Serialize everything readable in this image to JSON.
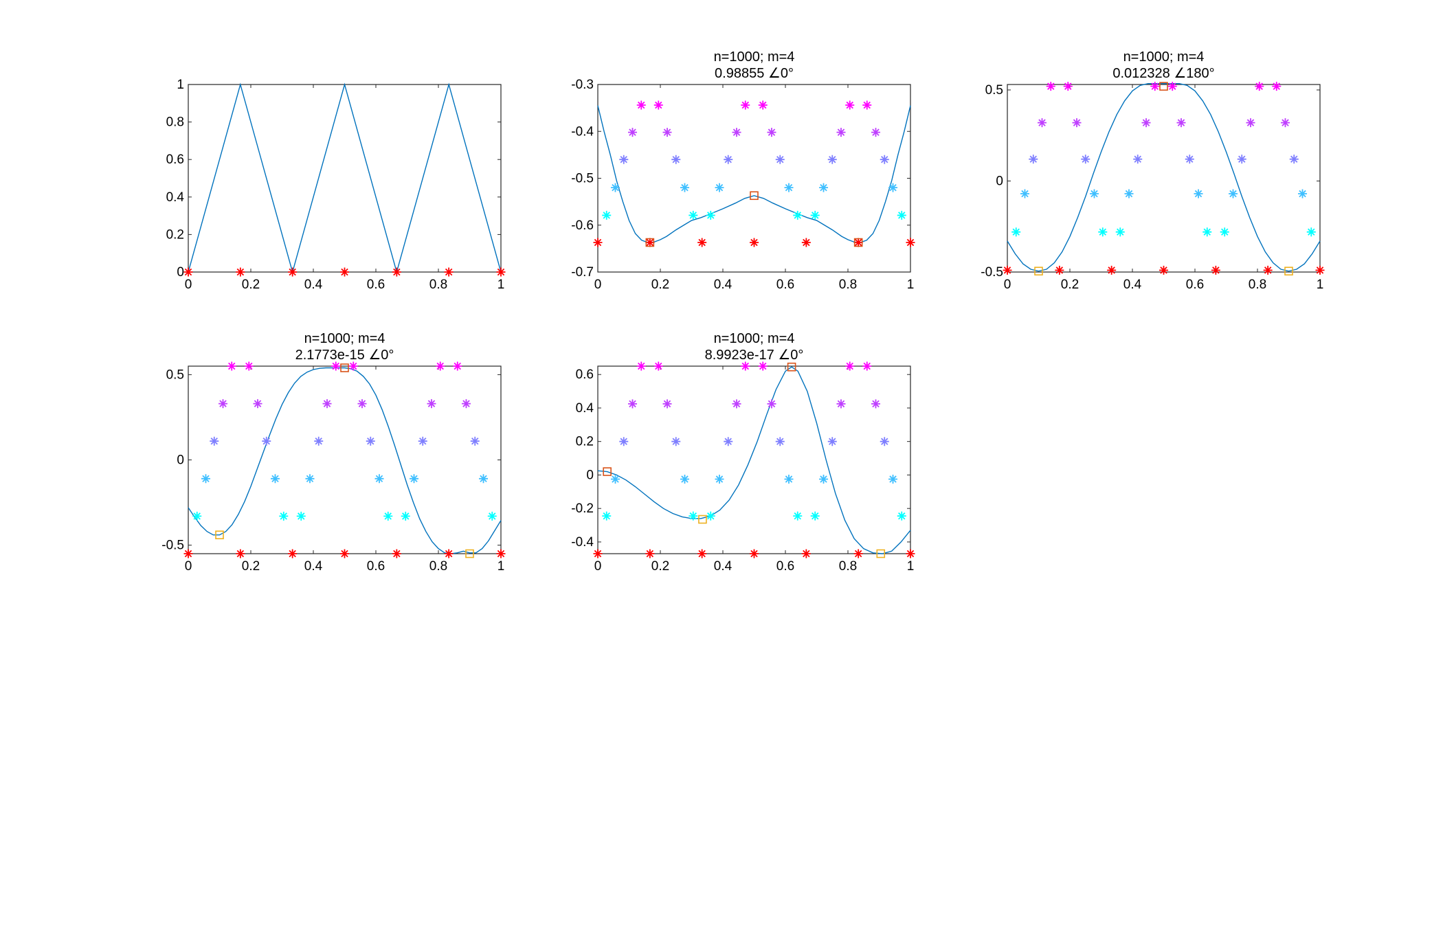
{
  "figure": {
    "background": "#ffffff",
    "curve_color": "#0072BD",
    "axes_color": "#262626"
  },
  "chart_data": [
    {
      "type": "line",
      "title": [],
      "xlim": [
        0,
        1
      ],
      "ylim": [
        0,
        1
      ],
      "xticks": [
        0,
        0.2,
        0.4,
        0.6,
        0.8,
        1
      ],
      "xtick_labels": [
        "0",
        "0.2",
        "0.4",
        "0.6",
        "0.8",
        "1"
      ],
      "yticks": [
        0,
        0.2,
        0.4,
        0.6,
        0.8,
        1
      ],
      "ytick_labels": [
        "0",
        "0.2",
        "0.4",
        "0.6",
        "0.8",
        "1"
      ],
      "curve": {
        "x": [
          0,
          0.1667,
          0.3333,
          0.5,
          0.6667,
          0.8333,
          1
        ],
        "y": [
          0,
          1,
          0,
          1,
          0,
          1,
          0
        ]
      },
      "star_rows": [
        {
          "color": "#FF0000",
          "y": 0,
          "x": [
            0,
            0.1667,
            0.3333,
            0.5,
            0.6667,
            0.8333,
            1
          ]
        }
      ],
      "squares": []
    },
    {
      "type": "line",
      "title": [
        "n=1000; m=4",
        "0.98855 ∠0°"
      ],
      "xlim": [
        0,
        1
      ],
      "ylim": [
        -0.7,
        -0.3
      ],
      "xticks": [
        0,
        0.2,
        0.4,
        0.6,
        0.8,
        1
      ],
      "xtick_labels": [
        "0",
        "0.2",
        "0.4",
        "0.6",
        "0.8",
        "1"
      ],
      "yticks": [
        -0.7,
        -0.6,
        -0.5,
        -0.4,
        -0.3
      ],
      "ytick_labels": [
        "-0.7",
        "-0.6",
        "-0.5",
        "-0.4",
        "-0.3"
      ],
      "curve": {
        "x": [
          0,
          0.02,
          0.04,
          0.06,
          0.08,
          0.1,
          0.12,
          0.14,
          0.16,
          0.1667,
          0.18,
          0.2,
          0.22,
          0.25,
          0.28,
          0.3,
          0.33,
          0.36,
          0.4,
          0.44,
          0.47,
          0.5,
          0.53,
          0.56,
          0.6,
          0.64,
          0.67,
          0.7,
          0.72,
          0.75,
          0.78,
          0.8,
          0.82,
          0.8333,
          0.84,
          0.86,
          0.88,
          0.9,
          0.92,
          0.94,
          0.96,
          0.98,
          1
        ],
        "y": [
          -0.345,
          -0.4,
          -0.45,
          -0.505,
          -0.55,
          -0.59,
          -0.618,
          -0.632,
          -0.637,
          -0.637,
          -0.636,
          -0.631,
          -0.624,
          -0.61,
          -0.598,
          -0.59,
          -0.584,
          -0.576,
          -0.565,
          -0.553,
          -0.543,
          -0.537,
          -0.543,
          -0.553,
          -0.565,
          -0.576,
          -0.584,
          -0.59,
          -0.598,
          -0.61,
          -0.624,
          -0.631,
          -0.636,
          -0.637,
          -0.637,
          -0.632,
          -0.618,
          -0.59,
          -0.55,
          -0.505,
          -0.45,
          -0.4,
          -0.345
        ]
      },
      "star_rows": [
        {
          "color": "#FF0000",
          "y": -0.637,
          "x": [
            0,
            0.1667,
            0.3333,
            0.5,
            0.6667,
            0.8333,
            1
          ]
        },
        {
          "color": "#00FFFF",
          "y": -0.579,
          "x": [
            0.028,
            0.305,
            0.361,
            0.639,
            0.695,
            0.972
          ]
        },
        {
          "color": "#3FBFFF",
          "y": -0.52,
          "x": [
            0.056,
            0.278,
            0.389,
            0.611,
            0.722,
            0.944
          ]
        },
        {
          "color": "#7F7FFF",
          "y": -0.46,
          "x": [
            0.083,
            0.25,
            0.417,
            0.583,
            0.75,
            0.917
          ]
        },
        {
          "color": "#BF3FFF",
          "y": -0.402,
          "x": [
            0.111,
            0.222,
            0.444,
            0.556,
            0.778,
            0.889
          ]
        },
        {
          "color": "#FF00FF",
          "y": -0.344,
          "x": [
            0.139,
            0.194,
            0.472,
            0.528,
            0.806,
            0.861
          ]
        }
      ],
      "squares": [
        {
          "color": "#D95319",
          "x": 0.5,
          "y": -0.537
        },
        {
          "color": "#D95319",
          "x": 0.1667,
          "y": -0.637
        },
        {
          "color": "#D95319",
          "x": 0.8333,
          "y": -0.637
        }
      ]
    },
    {
      "type": "line",
      "title": [
        "n=1000; m=4",
        "0.012328 ∠180°"
      ],
      "xlim": [
        0,
        1
      ],
      "ylim": [
        -0.5,
        0.53
      ],
      "xticks": [
        0,
        0.2,
        0.4,
        0.6,
        0.8,
        1
      ],
      "xtick_labels": [
        "0",
        "0.2",
        "0.4",
        "0.6",
        "0.8",
        "1"
      ],
      "yticks": [
        -0.5,
        0,
        0.5
      ],
      "ytick_labels": [
        "-0.5",
        "0",
        "0.5"
      ],
      "curve": {
        "x": [
          0,
          0.025,
          0.05,
          0.075,
          0.1,
          0.125,
          0.15,
          0.175,
          0.2,
          0.225,
          0.25,
          0.275,
          0.3,
          0.325,
          0.35,
          0.375,
          0.4,
          0.425,
          0.45,
          0.475,
          0.5,
          0.525,
          0.55,
          0.575,
          0.6,
          0.625,
          0.65,
          0.675,
          0.7,
          0.725,
          0.75,
          0.775,
          0.8,
          0.825,
          0.85,
          0.875,
          0.9,
          0.925,
          0.95,
          0.975,
          1
        ],
        "y": [
          -0.33,
          -0.4,
          -0.455,
          -0.485,
          -0.495,
          -0.485,
          -0.45,
          -0.39,
          -0.305,
          -0.2,
          -0.085,
          0.04,
          0.16,
          0.27,
          0.365,
          0.44,
          0.495,
          0.525,
          0.535,
          0.535,
          0.535,
          0.535,
          0.535,
          0.525,
          0.495,
          0.44,
          0.365,
          0.27,
          0.16,
          0.04,
          -0.085,
          -0.2,
          -0.305,
          -0.39,
          -0.45,
          -0.485,
          -0.495,
          -0.485,
          -0.455,
          -0.4,
          -0.33
        ]
      },
      "star_rows": [
        {
          "color": "#FF0000",
          "y": -0.49,
          "x": [
            0,
            0.1667,
            0.3333,
            0.5,
            0.6667,
            0.8333,
            1
          ]
        },
        {
          "color": "#00FFFF",
          "y": -0.28,
          "x": [
            0.028,
            0.305,
            0.361,
            0.639,
            0.695,
            0.972
          ]
        },
        {
          "color": "#3FBFFF",
          "y": -0.07,
          "x": [
            0.056,
            0.278,
            0.389,
            0.611,
            0.722,
            0.944
          ]
        },
        {
          "color": "#7F7FFF",
          "y": 0.12,
          "x": [
            0.083,
            0.25,
            0.417,
            0.583,
            0.75,
            0.917
          ]
        },
        {
          "color": "#BF3FFF",
          "y": 0.32,
          "x": [
            0.111,
            0.222,
            0.444,
            0.556,
            0.778,
            0.889
          ]
        },
        {
          "color": "#FF00FF",
          "y": 0.52,
          "x": [
            0.139,
            0.194,
            0.472,
            0.528,
            0.806,
            0.861
          ]
        }
      ],
      "squares": [
        {
          "color": "#D95319",
          "x": 0.5,
          "y": 0.52
        },
        {
          "color": "#EDB120",
          "x": 0.1,
          "y": -0.495
        },
        {
          "color": "#EDB120",
          "x": 0.9,
          "y": -0.495
        }
      ]
    },
    {
      "type": "line",
      "title": [
        "n=1000; m=4",
        "2.1773e-15 ∠0°"
      ],
      "xlim": [
        0,
        1
      ],
      "ylim": [
        -0.55,
        0.55
      ],
      "xticks": [
        0,
        0.2,
        0.4,
        0.6,
        0.8,
        1
      ],
      "xtick_labels": [
        "0",
        "0.2",
        "0.4",
        "0.6",
        "0.8",
        "1"
      ],
      "yticks": [
        -0.5,
        0,
        0.5
      ],
      "ytick_labels": [
        "-0.5",
        "0",
        "0.5"
      ],
      "curve": {
        "x": [
          0,
          0.02,
          0.04,
          0.06,
          0.08,
          0.1,
          0.12,
          0.14,
          0.16,
          0.18,
          0.2,
          0.22,
          0.24,
          0.26,
          0.28,
          0.3,
          0.32,
          0.34,
          0.36,
          0.38,
          0.4,
          0.42,
          0.44,
          0.46,
          0.48,
          0.5,
          0.52,
          0.54,
          0.56,
          0.58,
          0.6,
          0.62,
          0.64,
          0.66,
          0.68,
          0.7,
          0.72,
          0.74,
          0.76,
          0.78,
          0.8,
          0.82,
          0.84,
          0.86,
          0.88,
          0.9,
          0.92,
          0.94,
          0.96,
          0.98,
          1
        ],
        "y": [
          -0.28,
          -0.335,
          -0.385,
          -0.42,
          -0.44,
          -0.44,
          -0.42,
          -0.38,
          -0.32,
          -0.245,
          -0.155,
          -0.055,
          0.045,
          0.145,
          0.24,
          0.325,
          0.395,
          0.45,
          0.49,
          0.515,
          0.53,
          0.537,
          0.54,
          0.54,
          0.54,
          0.54,
          0.535,
          0.52,
          0.49,
          0.445,
          0.38,
          0.295,
          0.195,
          0.085,
          -0.03,
          -0.145,
          -0.25,
          -0.345,
          -0.42,
          -0.48,
          -0.52,
          -0.545,
          -0.55,
          -0.545,
          -0.535,
          -0.545,
          -0.545,
          -0.52,
          -0.475,
          -0.415,
          -0.355
        ]
      },
      "star_rows": [
        {
          "color": "#FF0000",
          "y": -0.55,
          "x": [
            0,
            0.1667,
            0.3333,
            0.5,
            0.6667,
            0.8333,
            1
          ]
        },
        {
          "color": "#00FFFF",
          "y": -0.33,
          "x": [
            0.028,
            0.305,
            0.361,
            0.639,
            0.695,
            0.972
          ]
        },
        {
          "color": "#3FBFFF",
          "y": -0.11,
          "x": [
            0.056,
            0.278,
            0.389,
            0.611,
            0.722,
            0.944
          ]
        },
        {
          "color": "#7F7FFF",
          "y": 0.11,
          "x": [
            0.083,
            0.25,
            0.417,
            0.583,
            0.75,
            0.917
          ]
        },
        {
          "color": "#BF3FFF",
          "y": 0.33,
          "x": [
            0.111,
            0.222,
            0.444,
            0.556,
            0.778,
            0.889
          ]
        },
        {
          "color": "#FF00FF",
          "y": 0.55,
          "x": [
            0.139,
            0.194,
            0.472,
            0.528,
            0.806,
            0.861
          ]
        }
      ],
      "squares": [
        {
          "color": "#D95319",
          "x": 0.5,
          "y": 0.54
        },
        {
          "color": "#EDB120",
          "x": 0.1,
          "y": -0.44
        },
        {
          "color": "#EDB120",
          "x": 0.9,
          "y": -0.55
        }
      ]
    },
    {
      "type": "line",
      "title": [
        "n=1000; m=4",
        "8.9923e-17 ∠0°"
      ],
      "xlim": [
        0,
        1
      ],
      "ylim": [
        -0.47,
        0.65
      ],
      "xticks": [
        0,
        0.2,
        0.4,
        0.6,
        0.8,
        1
      ],
      "xtick_labels": [
        "0",
        "0.2",
        "0.4",
        "0.6",
        "0.8",
        "1"
      ],
      "yticks": [
        -0.4,
        -0.2,
        0,
        0.2,
        0.4,
        0.6
      ],
      "ytick_labels": [
        "-0.4",
        "-0.2",
        "0",
        "0.2",
        "0.4",
        "0.6"
      ],
      "curve": {
        "x": [
          0,
          0.03,
          0.06,
          0.09,
          0.12,
          0.15,
          0.18,
          0.21,
          0.24,
          0.27,
          0.3,
          0.33,
          0.36,
          0.39,
          0.42,
          0.45,
          0.48,
          0.51,
          0.54,
          0.57,
          0.6,
          0.62,
          0.64,
          0.67,
          0.7,
          0.73,
          0.76,
          0.79,
          0.82,
          0.85,
          0.88,
          0.91,
          0.94,
          0.97,
          1
        ],
        "y": [
          0.025,
          0.02,
          0.0,
          -0.03,
          -0.07,
          -0.115,
          -0.16,
          -0.2,
          -0.23,
          -0.25,
          -0.26,
          -0.26,
          -0.245,
          -0.21,
          -0.15,
          -0.06,
          0.06,
          0.2,
          0.36,
          0.51,
          0.62,
          0.645,
          0.62,
          0.5,
          0.31,
          0.09,
          -0.11,
          -0.27,
          -0.38,
          -0.44,
          -0.465,
          -0.47,
          -0.455,
          -0.4,
          -0.33
        ]
      },
      "star_rows": [
        {
          "color": "#FF0000",
          "y": -0.47,
          "x": [
            0,
            0.1667,
            0.3333,
            0.5,
            0.6667,
            0.8333,
            1
          ]
        },
        {
          "color": "#00FFFF",
          "y": -0.245,
          "x": [
            0.028,
            0.305,
            0.361,
            0.639,
            0.695,
            0.972
          ]
        },
        {
          "color": "#3FBFFF",
          "y": -0.025,
          "x": [
            0.056,
            0.278,
            0.389,
            0.611,
            0.722,
            0.944
          ]
        },
        {
          "color": "#7F7FFF",
          "y": 0.2,
          "x": [
            0.083,
            0.25,
            0.417,
            0.583,
            0.75,
            0.917
          ]
        },
        {
          "color": "#BF3FFF",
          "y": 0.425,
          "x": [
            0.111,
            0.222,
            0.444,
            0.556,
            0.778,
            0.889
          ]
        },
        {
          "color": "#FF00FF",
          "y": 0.65,
          "x": [
            0.139,
            0.194,
            0.472,
            0.528,
            0.806,
            0.861
          ]
        }
      ],
      "squares": [
        {
          "color": "#D95319",
          "x": 0.62,
          "y": 0.645
        },
        {
          "color": "#D95319",
          "x": 0.03,
          "y": 0.02
        },
        {
          "color": "#EDB120",
          "x": 0.335,
          "y": -0.265
        },
        {
          "color": "#EDB120",
          "x": 0.905,
          "y": -0.47
        }
      ]
    }
  ]
}
